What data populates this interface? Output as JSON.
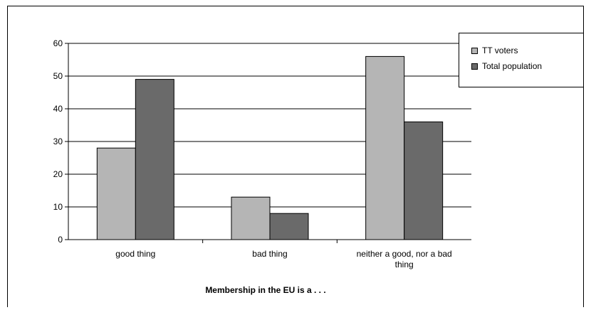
{
  "chart_data": {
    "type": "bar",
    "title": "",
    "xlabel": "Membership in the EU is a . . .",
    "ylabel": "",
    "ylim": [
      0,
      60
    ],
    "yticks": [
      0,
      10,
      20,
      30,
      40,
      50,
      60
    ],
    "grid": true,
    "legend_position": "top-right",
    "categories": [
      [
        "good thing"
      ],
      [
        "bad thing"
      ],
      [
        "neither a good, nor a bad",
        "thing"
      ]
    ],
    "series": [
      {
        "name": "TT voters",
        "values": [
          28,
          13,
          56
        ],
        "color": "#b5b5b5"
      },
      {
        "name": "Total population",
        "values": [
          49,
          8,
          36
        ],
        "color": "#6a6a6a"
      }
    ]
  }
}
